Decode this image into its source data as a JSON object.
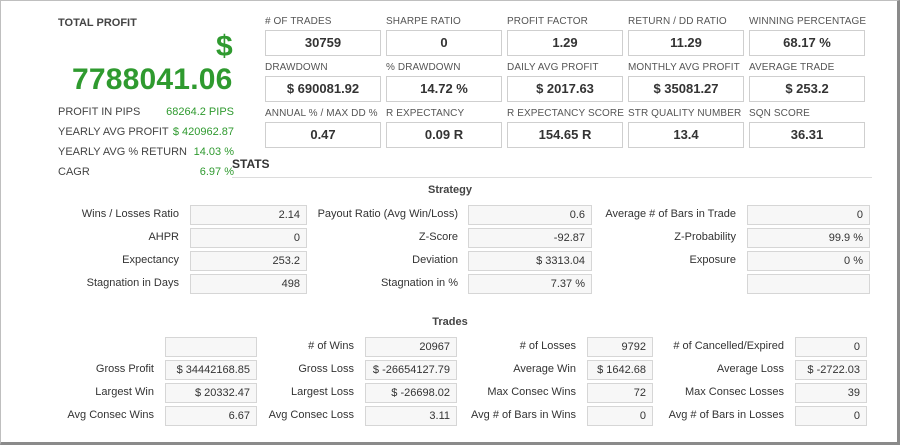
{
  "summary": {
    "total_profit_label": "TOTAL PROFIT",
    "currency_symbol": "$",
    "total_profit_value": "7788041.06",
    "rows": [
      {
        "label": "PROFIT IN PIPS",
        "value": "68264.2 PIPS"
      },
      {
        "label": "YEARLY AVG PROFIT",
        "value": "$ 420962.87"
      },
      {
        "label": "YEARLY AVG % RETURN",
        "value": "14.03 %"
      },
      {
        "label": "CAGR",
        "value": "6.97 %"
      }
    ]
  },
  "metrics": [
    {
      "label": "# OF TRADES",
      "value": "30759"
    },
    {
      "label": "SHARPE RATIO",
      "value": "0"
    },
    {
      "label": "PROFIT FACTOR",
      "value": "1.29"
    },
    {
      "label": "RETURN / DD RATIO",
      "value": "11.29"
    },
    {
      "label": "WINNING PERCENTAGE",
      "value": "68.17 %"
    },
    {
      "label": "DRAWDOWN",
      "value": "$ 690081.92"
    },
    {
      "label": "% DRAWDOWN",
      "value": "14.72 %"
    },
    {
      "label": "DAILY AVG PROFIT",
      "value": "$ 2017.63"
    },
    {
      "label": "MONTHLY AVG PROFIT",
      "value": "$ 35081.27"
    },
    {
      "label": "AVERAGE TRADE",
      "value": "$ 253.2"
    },
    {
      "label": "ANNUAL % / MAX DD %",
      "value": "0.47"
    },
    {
      "label": "R EXPECTANCY",
      "value": "0.09 R"
    },
    {
      "label": "R EXPECTANCY SCORE",
      "value": "154.65 R"
    },
    {
      "label": "STR QUALITY NUMBER",
      "value": "13.4"
    },
    {
      "label": "SQN SCORE",
      "value": "36.31"
    }
  ],
  "stats_title": "STATS",
  "strategy": {
    "title": "Strategy",
    "rows": [
      [
        {
          "label": "Wins / Losses Ratio",
          "value": "2.14"
        },
        {
          "label": "Payout Ratio (Avg Win/Loss)",
          "value": "0.6"
        },
        {
          "label": "Average # of Bars in Trade",
          "value": "0"
        }
      ],
      [
        {
          "label": "AHPR",
          "value": "0"
        },
        {
          "label": "Z-Score",
          "value": "-92.87"
        },
        {
          "label": "Z-Probability",
          "value": "99.9 %"
        }
      ],
      [
        {
          "label": "Expectancy",
          "value": "253.2"
        },
        {
          "label": "Deviation",
          "value": "$ 3313.04"
        },
        {
          "label": "Exposure",
          "value": "0 %"
        }
      ],
      [
        {
          "label": "Stagnation in Days",
          "value": "498"
        },
        {
          "label": "Stagnation in %",
          "value": "7.37 %"
        },
        {
          "label": "",
          "value": ""
        }
      ]
    ]
  },
  "trades": {
    "title": "Trades",
    "rows": [
      [
        {
          "label": "",
          "value": ""
        },
        {
          "label": "# of Wins",
          "value": "20967"
        },
        {
          "label": "# of Losses",
          "value": "9792"
        },
        {
          "label": "# of Cancelled/Expired",
          "value": "0"
        }
      ],
      [
        {
          "label": "Gross Profit",
          "value": "$ 34442168.85"
        },
        {
          "label": "Gross Loss",
          "value": "$ -26654127.79"
        },
        {
          "label": "Average Win",
          "value": "$ 1642.68"
        },
        {
          "label": "Average Loss",
          "value": "$ -2722.03"
        }
      ],
      [
        {
          "label": "Largest Win",
          "value": "$ 20332.47"
        },
        {
          "label": "Largest Loss",
          "value": "$ -26698.02"
        },
        {
          "label": "Max Consec Wins",
          "value": "72"
        },
        {
          "label": "Max Consec Losses",
          "value": "39"
        }
      ],
      [
        {
          "label": "Avg Consec Wins",
          "value": "6.67"
        },
        {
          "label": "Avg Consec Loss",
          "value": "3.11"
        },
        {
          "label": "Avg # of Bars in Wins",
          "value": "0"
        },
        {
          "label": "Avg # of Bars in Losses",
          "value": "0"
        }
      ]
    ]
  }
}
